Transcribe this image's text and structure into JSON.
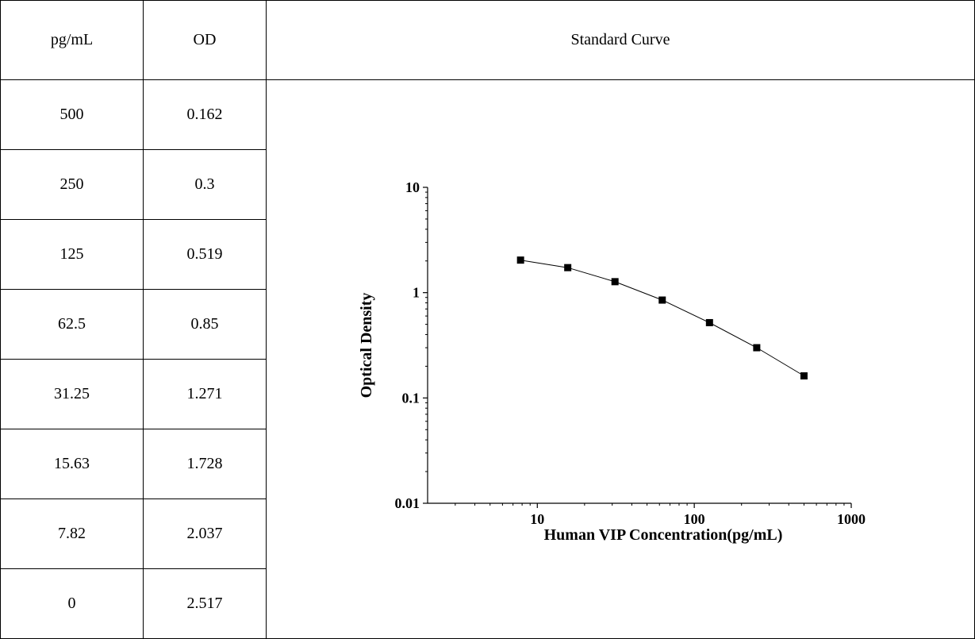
{
  "table": {
    "headers": [
      "pg/mL",
      "OD",
      "Standard Curve"
    ],
    "rows": [
      {
        "conc": "500",
        "od": "0.162"
      },
      {
        "conc": "250",
        "od": "0.3"
      },
      {
        "conc": "125",
        "od": "0.519"
      },
      {
        "conc": "62.5",
        "od": "0.85"
      },
      {
        "conc": "31.25",
        "od": "1.271"
      },
      {
        "conc": "15.63",
        "od": "1.728"
      },
      {
        "conc": "7.82",
        "od": "2.037"
      },
      {
        "conc": "0",
        "od": "2.517"
      }
    ]
  },
  "chart_data": {
    "type": "scatter",
    "title": "",
    "xlabel": "Human VIP Concentration(pg/mL)",
    "ylabel": "Optical Density",
    "x_scale": "log",
    "y_scale": "log",
    "xlim": [
      2,
      1000
    ],
    "ylim": [
      0.01,
      10
    ],
    "x_ticks": [
      "10",
      "100",
      "1000"
    ],
    "y_ticks": [
      "10",
      "1",
      "0.1",
      "0.01"
    ],
    "grid": false,
    "legend": "none",
    "marker": "square",
    "connected": true,
    "x": [
      7.82,
      15.63,
      31.25,
      62.5,
      125,
      250,
      500
    ],
    "y": [
      2.037,
      1.728,
      1.271,
      0.85,
      0.519,
      0.3,
      0.162
    ]
  }
}
